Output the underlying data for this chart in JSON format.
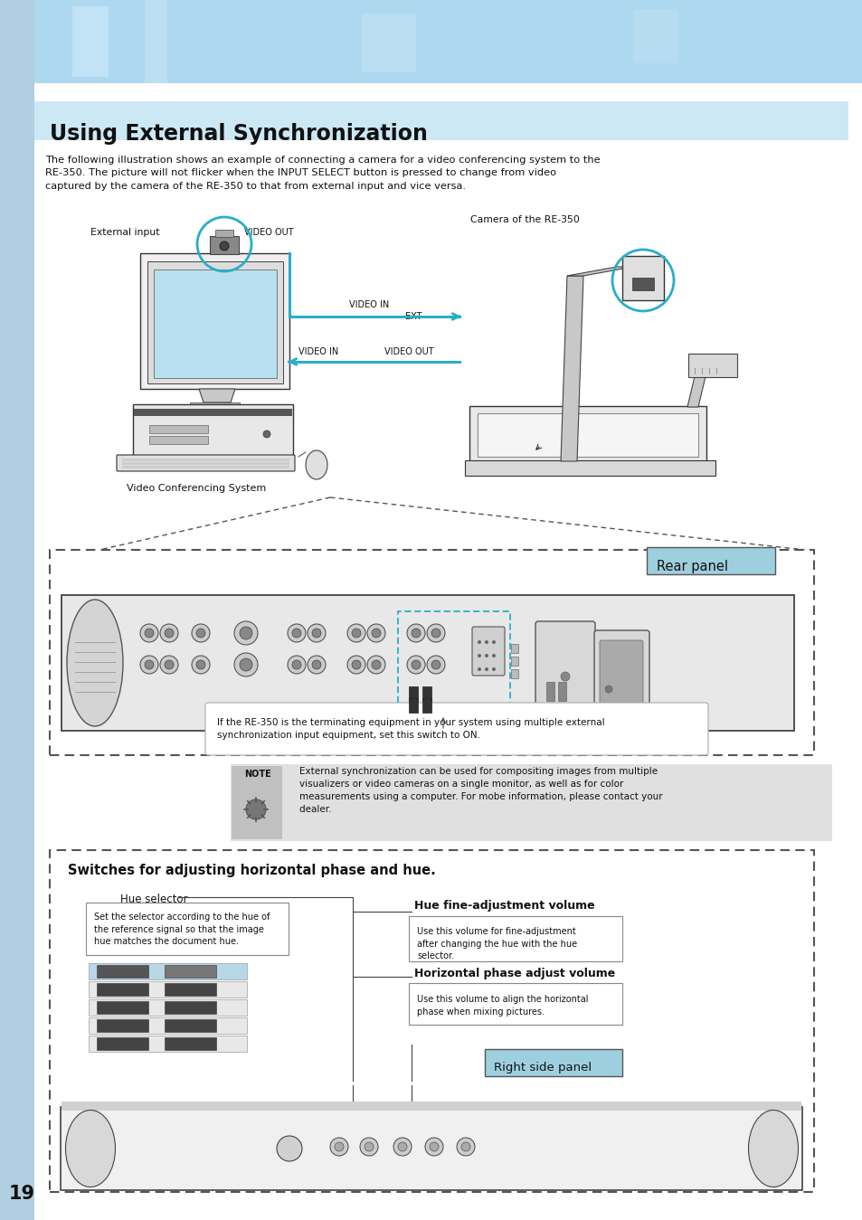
{
  "page_bg": "#ffffff",
  "header_bg": "#aed8f0",
  "title_text": "Using External Synchronization",
  "title_bg": "#cce8f5",
  "title_color": "#1a1a1a",
  "body_text_1": "The following illustration shows an example of connecting a camera for a video conferencing system to the\nRE-350. The picture will not flicker when the INPUT SELECT button is pressed to change from video\ncaptured by the camera of the RE-350 to that from external input and vice versa.",
  "rear_panel_label": "Rear panel",
  "rear_panel_label_bg": "#9ecfdf",
  "switch_caption": "If the RE-350 is the terminating equipment in your system using multiple external\nsynchronization input equipment, set this switch to ON.",
  "note_text": "    External synchronization can be used for compositing images from multiple\n    visualizers or video cameras on a single monitor, as well as for color\n    measurements using a computer. For mobe information, please contact your\n    dealer.",
  "note_label": "NOTE",
  "section2_title": "Switches for adjusting horizontal phase and hue.",
  "hue_selector_label": "Hue selector",
  "hue_desc": "Set the selector according to the hue of\nthe reference signal so that the image\nhue matches the document hue.",
  "hue_fine_label": "Hue fine-adjustment volume",
  "hue_fine_desc": "Use this volume for fine-adjustment\nafter changing the hue with the hue\nselector.",
  "horiz_label": "Horizontal phase adjust volume",
  "horiz_desc": "Use this volume to align the horizontal\nphase when mixing pictures.",
  "right_panel_label": "Right side panel",
  "right_panel_label_bg": "#9ecfdf",
  "page_number": "19",
  "cyan_color": "#29aec8",
  "page_left_tab_color": "#b0cfe0",
  "note_bg": "#e0e0e0",
  "dashed_color": "#444444",
  "diagram_bg": "#ffffff"
}
